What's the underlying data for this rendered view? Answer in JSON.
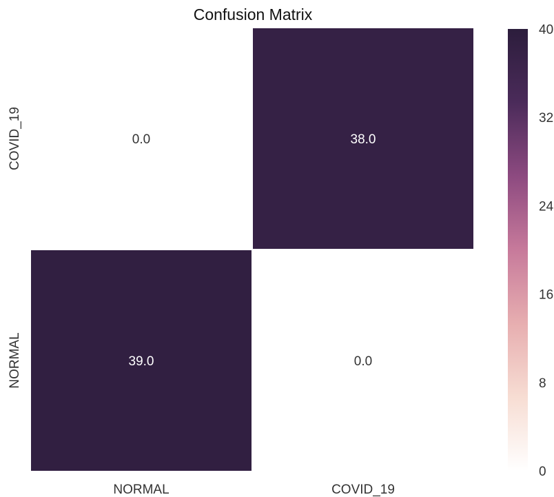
{
  "chart_data": {
    "type": "heatmap",
    "title": "Confusion Matrix",
    "xlabel": "",
    "ylabel": "",
    "x_categories": [
      "NORMAL",
      "COVID_19"
    ],
    "y_categories": [
      "COVID_19",
      "NORMAL"
    ],
    "values": [
      [
        0.0,
        38.0
      ],
      [
        39.0,
        0.0
      ]
    ],
    "annotations": [
      [
        "0.0",
        "38.0"
      ],
      [
        "39.0",
        "0.0"
      ]
    ],
    "colorbar": {
      "vmin": 0,
      "vmax": 40,
      "ticks": [
        0,
        8,
        16,
        24,
        32,
        40
      ],
      "colormap_stops": [
        "#ffffff",
        "#f7ddd3",
        "#e7aeb0",
        "#c77a9b",
        "#8d4a80",
        "#4b2b5a",
        "#2c1d3c"
      ]
    },
    "cell_border_color": "#ffffff"
  }
}
